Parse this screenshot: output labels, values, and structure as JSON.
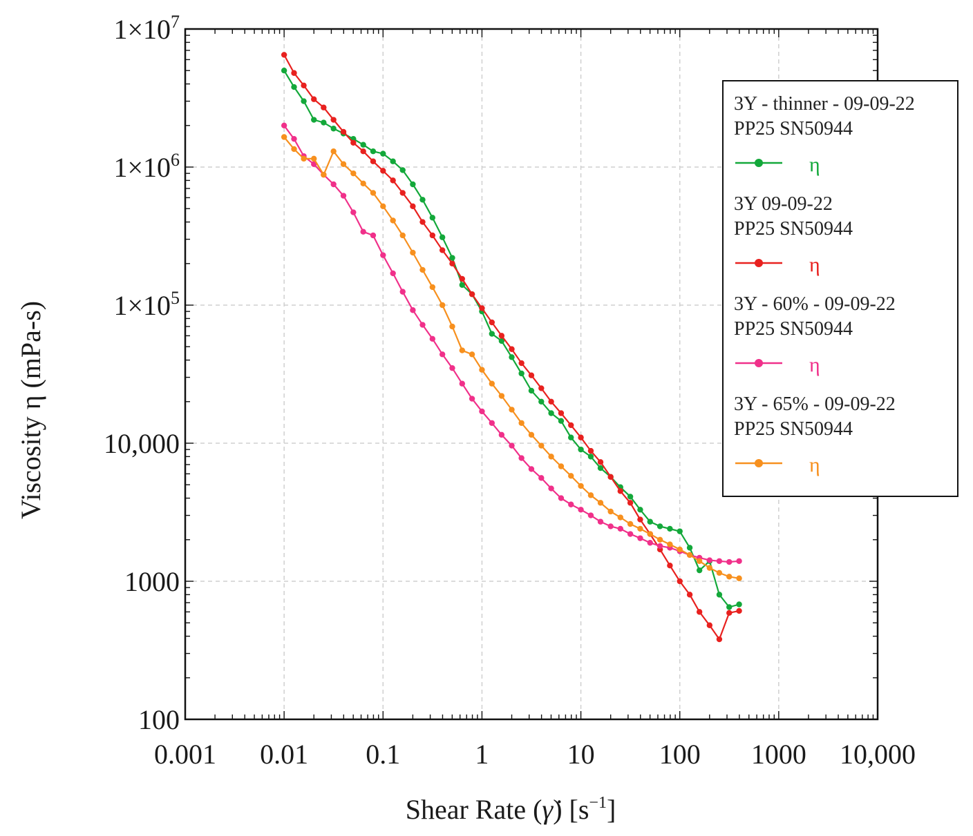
{
  "chart_data": {
    "type": "line",
    "xscale": "log",
    "yscale": "log",
    "xlim": [
      0.001,
      10000
    ],
    "ylim": [
      100,
      10000000
    ],
    "grid": true,
    "xlabel": "Shear Rate (γ̇) [s⁻¹]",
    "xlabel_parts": {
      "text": "Shear Rate (",
      "symbol": "γ̇",
      "unit": ") [s",
      "exponent": "−1",
      "close": "]"
    },
    "ylabel": "Viscosity η (mPa-s)",
    "x_ticks": [
      {
        "value": 0.001,
        "label": "0.001"
      },
      {
        "value": 0.01,
        "label": "0.01"
      },
      {
        "value": 0.1,
        "label": "0.1"
      },
      {
        "value": 1,
        "label": "1"
      },
      {
        "value": 10,
        "label": "10"
      },
      {
        "value": 100,
        "label": "100"
      },
      {
        "value": 1000,
        "label": "1000"
      },
      {
        "value": 10000,
        "label": "10,000"
      }
    ],
    "y_ticks": [
      {
        "value": 100,
        "label": "100"
      },
      {
        "value": 1000,
        "label": "1000"
      },
      {
        "value": 10000,
        "label": "10,000"
      },
      {
        "value": 100000,
        "label": "1×10",
        "sup": "5"
      },
      {
        "value": 1000000,
        "label": "1×10",
        "sup": "6"
      },
      {
        "value": 10000000,
        "label": "1×10",
        "sup": "7"
      }
    ],
    "legend_position": "top-right",
    "series": [
      {
        "name": "3Y - thinner - 09-09-22",
        "subtitle": "PP25 SN50944",
        "symbol": "η",
        "color": "#13a83a",
        "points": [
          [
            0.01,
            5000000
          ],
          [
            0.0126,
            3800000
          ],
          [
            0.0158,
            3000000
          ],
          [
            0.02,
            2200000
          ],
          [
            0.0251,
            2100000
          ],
          [
            0.0316,
            1900000
          ],
          [
            0.0398,
            1750000
          ],
          [
            0.0501,
            1600000
          ],
          [
            0.0631,
            1450000
          ],
          [
            0.0794,
            1300000
          ],
          [
            0.1,
            1250000
          ],
          [
            0.126,
            1100000
          ],
          [
            0.158,
            950000
          ],
          [
            0.2,
            750000
          ],
          [
            0.251,
            580000
          ],
          [
            0.316,
            430000
          ],
          [
            0.398,
            310000
          ],
          [
            0.501,
            220000
          ],
          [
            0.631,
            140000
          ],
          [
            0.794,
            120000
          ],
          [
            1,
            90000
          ],
          [
            1.26,
            62000
          ],
          [
            1.58,
            55000
          ],
          [
            2,
            42000
          ],
          [
            2.51,
            32000
          ],
          [
            3.16,
            24000
          ],
          [
            3.98,
            20000
          ],
          [
            5.01,
            16500
          ],
          [
            6.31,
            14500
          ],
          [
            7.94,
            11000
          ],
          [
            10,
            9000
          ],
          [
            12.6,
            8000
          ],
          [
            15.8,
            6600
          ],
          [
            20,
            5700
          ],
          [
            25.1,
            4800
          ],
          [
            31.6,
            4100
          ],
          [
            39.8,
            3300
          ],
          [
            50.1,
            2700
          ],
          [
            63.1,
            2500
          ],
          [
            79.4,
            2400
          ],
          [
            100,
            2300
          ],
          [
            126,
            1750
          ],
          [
            158,
            1200
          ],
          [
            200,
            1400
          ],
          [
            251,
            800
          ],
          [
            316,
            650
          ],
          [
            398,
            680
          ]
        ]
      },
      {
        "name": "3Y 09-09-22",
        "subtitle": "PP25 SN50944",
        "symbol": "η",
        "color": "#e8211f",
        "points": [
          [
            0.01,
            6500000
          ],
          [
            0.0126,
            4800000
          ],
          [
            0.0158,
            3900000
          ],
          [
            0.02,
            3100000
          ],
          [
            0.0251,
            2700000
          ],
          [
            0.0316,
            2200000
          ],
          [
            0.0398,
            1800000
          ],
          [
            0.0501,
            1500000
          ],
          [
            0.0631,
            1300000
          ],
          [
            0.0794,
            1100000
          ],
          [
            0.1,
            940000
          ],
          [
            0.126,
            800000
          ],
          [
            0.158,
            650000
          ],
          [
            0.2,
            520000
          ],
          [
            0.251,
            400000
          ],
          [
            0.316,
            320000
          ],
          [
            0.398,
            250000
          ],
          [
            0.501,
            200000
          ],
          [
            0.631,
            155000
          ],
          [
            0.794,
            120000
          ],
          [
            1,
            95000
          ],
          [
            1.26,
            75000
          ],
          [
            1.58,
            60000
          ],
          [
            2,
            48000
          ],
          [
            2.51,
            38000
          ],
          [
            3.16,
            31000
          ],
          [
            3.98,
            25000
          ],
          [
            5.01,
            20000
          ],
          [
            6.31,
            16500
          ],
          [
            7.94,
            13500
          ],
          [
            10,
            11000
          ],
          [
            12.6,
            8800
          ],
          [
            15.8,
            7300
          ],
          [
            20,
            5700
          ],
          [
            25.1,
            4500
          ],
          [
            31.6,
            3700
          ],
          [
            39.8,
            2800
          ],
          [
            50.1,
            2200
          ],
          [
            63.1,
            1700
          ],
          [
            79.4,
            1300
          ],
          [
            100,
            1000
          ],
          [
            126,
            800
          ],
          [
            158,
            600
          ],
          [
            200,
            480
          ],
          [
            251,
            380
          ],
          [
            316,
            590
          ],
          [
            398,
            610
          ]
        ]
      },
      {
        "name": "3Y - 60% - 09-09-22",
        "subtitle": "PP25 SN50944",
        "symbol": "η",
        "color": "#f0308a",
        "points": [
          [
            0.01,
            2000000
          ],
          [
            0.0126,
            1600000
          ],
          [
            0.0158,
            1200000
          ],
          [
            0.02,
            1050000
          ],
          [
            0.0251,
            880000
          ],
          [
            0.0316,
            750000
          ],
          [
            0.0398,
            620000
          ],
          [
            0.0501,
            470000
          ],
          [
            0.0631,
            340000
          ],
          [
            0.0794,
            320000
          ],
          [
            0.1,
            230000
          ],
          [
            0.126,
            170000
          ],
          [
            0.158,
            125000
          ],
          [
            0.2,
            92000
          ],
          [
            0.251,
            72000
          ],
          [
            0.316,
            57000
          ],
          [
            0.398,
            44000
          ],
          [
            0.501,
            35000
          ],
          [
            0.631,
            27000
          ],
          [
            0.794,
            21000
          ],
          [
            1,
            17000
          ],
          [
            1.26,
            14000
          ],
          [
            1.58,
            11500
          ],
          [
            2,
            9600
          ],
          [
            2.51,
            7800
          ],
          [
            3.16,
            6500
          ],
          [
            3.98,
            5600
          ],
          [
            5.01,
            4700
          ],
          [
            6.31,
            4000
          ],
          [
            7.94,
            3600
          ],
          [
            10,
            3300
          ],
          [
            12.6,
            3000
          ],
          [
            15.8,
            2700
          ],
          [
            20,
            2500
          ],
          [
            25.1,
            2400
          ],
          [
            31.6,
            2200
          ],
          [
            39.8,
            2050
          ],
          [
            50.1,
            1900
          ],
          [
            63.1,
            1800
          ],
          [
            79.4,
            1750
          ],
          [
            100,
            1650
          ],
          [
            126,
            1550
          ],
          [
            158,
            1480
          ],
          [
            200,
            1420
          ],
          [
            251,
            1400
          ],
          [
            316,
            1380
          ],
          [
            398,
            1400
          ]
        ]
      },
      {
        "name": "3Y - 65% - 09-09-22",
        "subtitle": "PP25 SN50944",
        "symbol": "η",
        "color": "#f7901e",
        "points": [
          [
            0.01,
            1650000
          ],
          [
            0.0126,
            1350000
          ],
          [
            0.0158,
            1150000
          ],
          [
            0.02,
            1150000
          ],
          [
            0.0251,
            880000
          ],
          [
            0.0316,
            1300000
          ],
          [
            0.0398,
            1050000
          ],
          [
            0.0501,
            900000
          ],
          [
            0.0631,
            760000
          ],
          [
            0.0794,
            650000
          ],
          [
            0.1,
            520000
          ],
          [
            0.126,
            410000
          ],
          [
            0.158,
            320000
          ],
          [
            0.2,
            240000
          ],
          [
            0.251,
            180000
          ],
          [
            0.316,
            135000
          ],
          [
            0.398,
            100000
          ],
          [
            0.501,
            70000
          ],
          [
            0.631,
            47000
          ],
          [
            0.794,
            44000
          ],
          [
            1,
            34000
          ],
          [
            1.26,
            27000
          ],
          [
            1.58,
            22000
          ],
          [
            2,
            17500
          ],
          [
            2.51,
            14000
          ],
          [
            3.16,
            11500
          ],
          [
            3.98,
            9600
          ],
          [
            5.01,
            8000
          ],
          [
            6.31,
            6800
          ],
          [
            7.94,
            5800
          ],
          [
            10,
            4900
          ],
          [
            12.6,
            4200
          ],
          [
            15.8,
            3700
          ],
          [
            20,
            3200
          ],
          [
            25.1,
            2900
          ],
          [
            31.6,
            2600
          ],
          [
            39.8,
            2400
          ],
          [
            50.1,
            2200
          ],
          [
            63.1,
            2000
          ],
          [
            79.4,
            1850
          ],
          [
            100,
            1700
          ],
          [
            126,
            1550
          ],
          [
            158,
            1400
          ],
          [
            200,
            1250
          ],
          [
            251,
            1150
          ],
          [
            316,
            1080
          ],
          [
            398,
            1050
          ]
        ]
      }
    ]
  }
}
